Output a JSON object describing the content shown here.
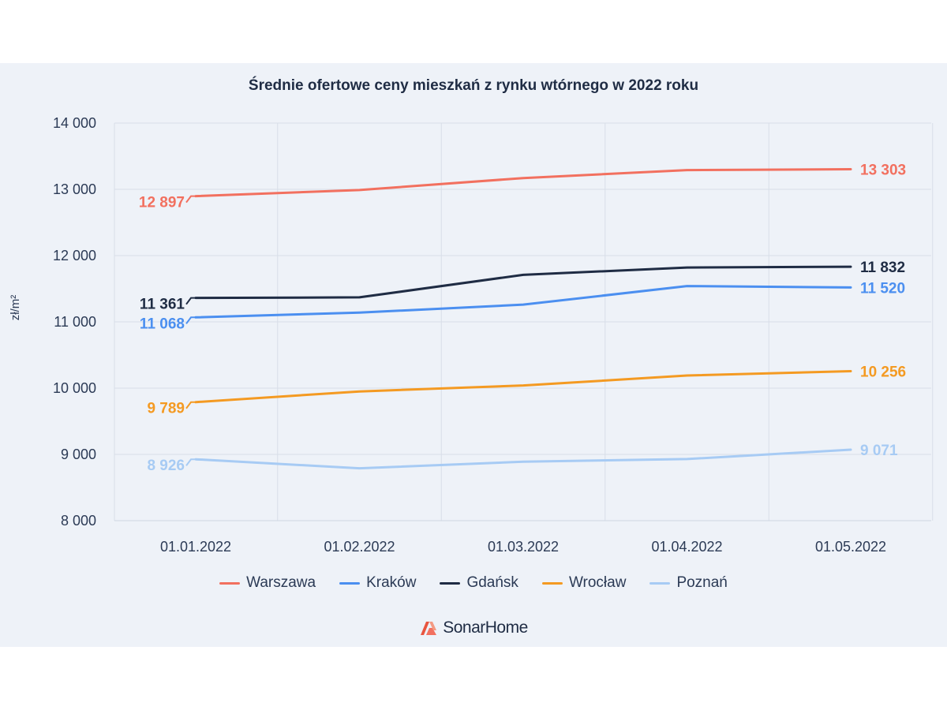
{
  "chart_data": {
    "type": "line",
    "title": "Średnie ofertowe ceny mieszkań z rynku wtórnego w 2022 roku",
    "ylabel": "zł/m²",
    "xlabel": "",
    "categories": [
      "01.01.2022",
      "01.02.2022",
      "01.03.2022",
      "01.04.2022",
      "01.05.2022"
    ],
    "ylim": [
      8000,
      14000
    ],
    "yticks": [
      8000,
      9000,
      10000,
      11000,
      12000,
      13000,
      14000
    ],
    "ytick_labels": [
      "8 000",
      "9 000",
      "10 000",
      "11 000",
      "12 000",
      "13 000",
      "14 000"
    ],
    "grid": "vertical",
    "legend_position": "bottom-center",
    "series": [
      {
        "name": "Warszawa",
        "color": "#f2705f",
        "values": [
          12897,
          12990,
          13170,
          13290,
          13303
        ],
        "first_label": "12 897",
        "last_label": "13 303"
      },
      {
        "name": "Kraków",
        "color": "#4b8ff0",
        "values": [
          11068,
          11140,
          11260,
          11540,
          11520
        ],
        "first_label": "11 068",
        "last_label": "11 520"
      },
      {
        "name": "Gdańsk",
        "color": "#1f2c44",
        "values": [
          11361,
          11370,
          11710,
          11820,
          11832
        ],
        "first_label": "11 361",
        "last_label": "11 832"
      },
      {
        "name": "Wrocław",
        "color": "#f49a22",
        "values": [
          9789,
          9950,
          10040,
          10190,
          10256
        ],
        "first_label": "9 789",
        "last_label": "10 256"
      },
      {
        "name": "Poznań",
        "color": "#a7cbf4",
        "values": [
          8926,
          8790,
          8890,
          8930,
          9071
        ],
        "first_label": "8 926",
        "last_label": "9 071"
      }
    ]
  },
  "brand": {
    "name": "SonarHome",
    "logo_icon": "sonarhome-logo-icon"
  }
}
